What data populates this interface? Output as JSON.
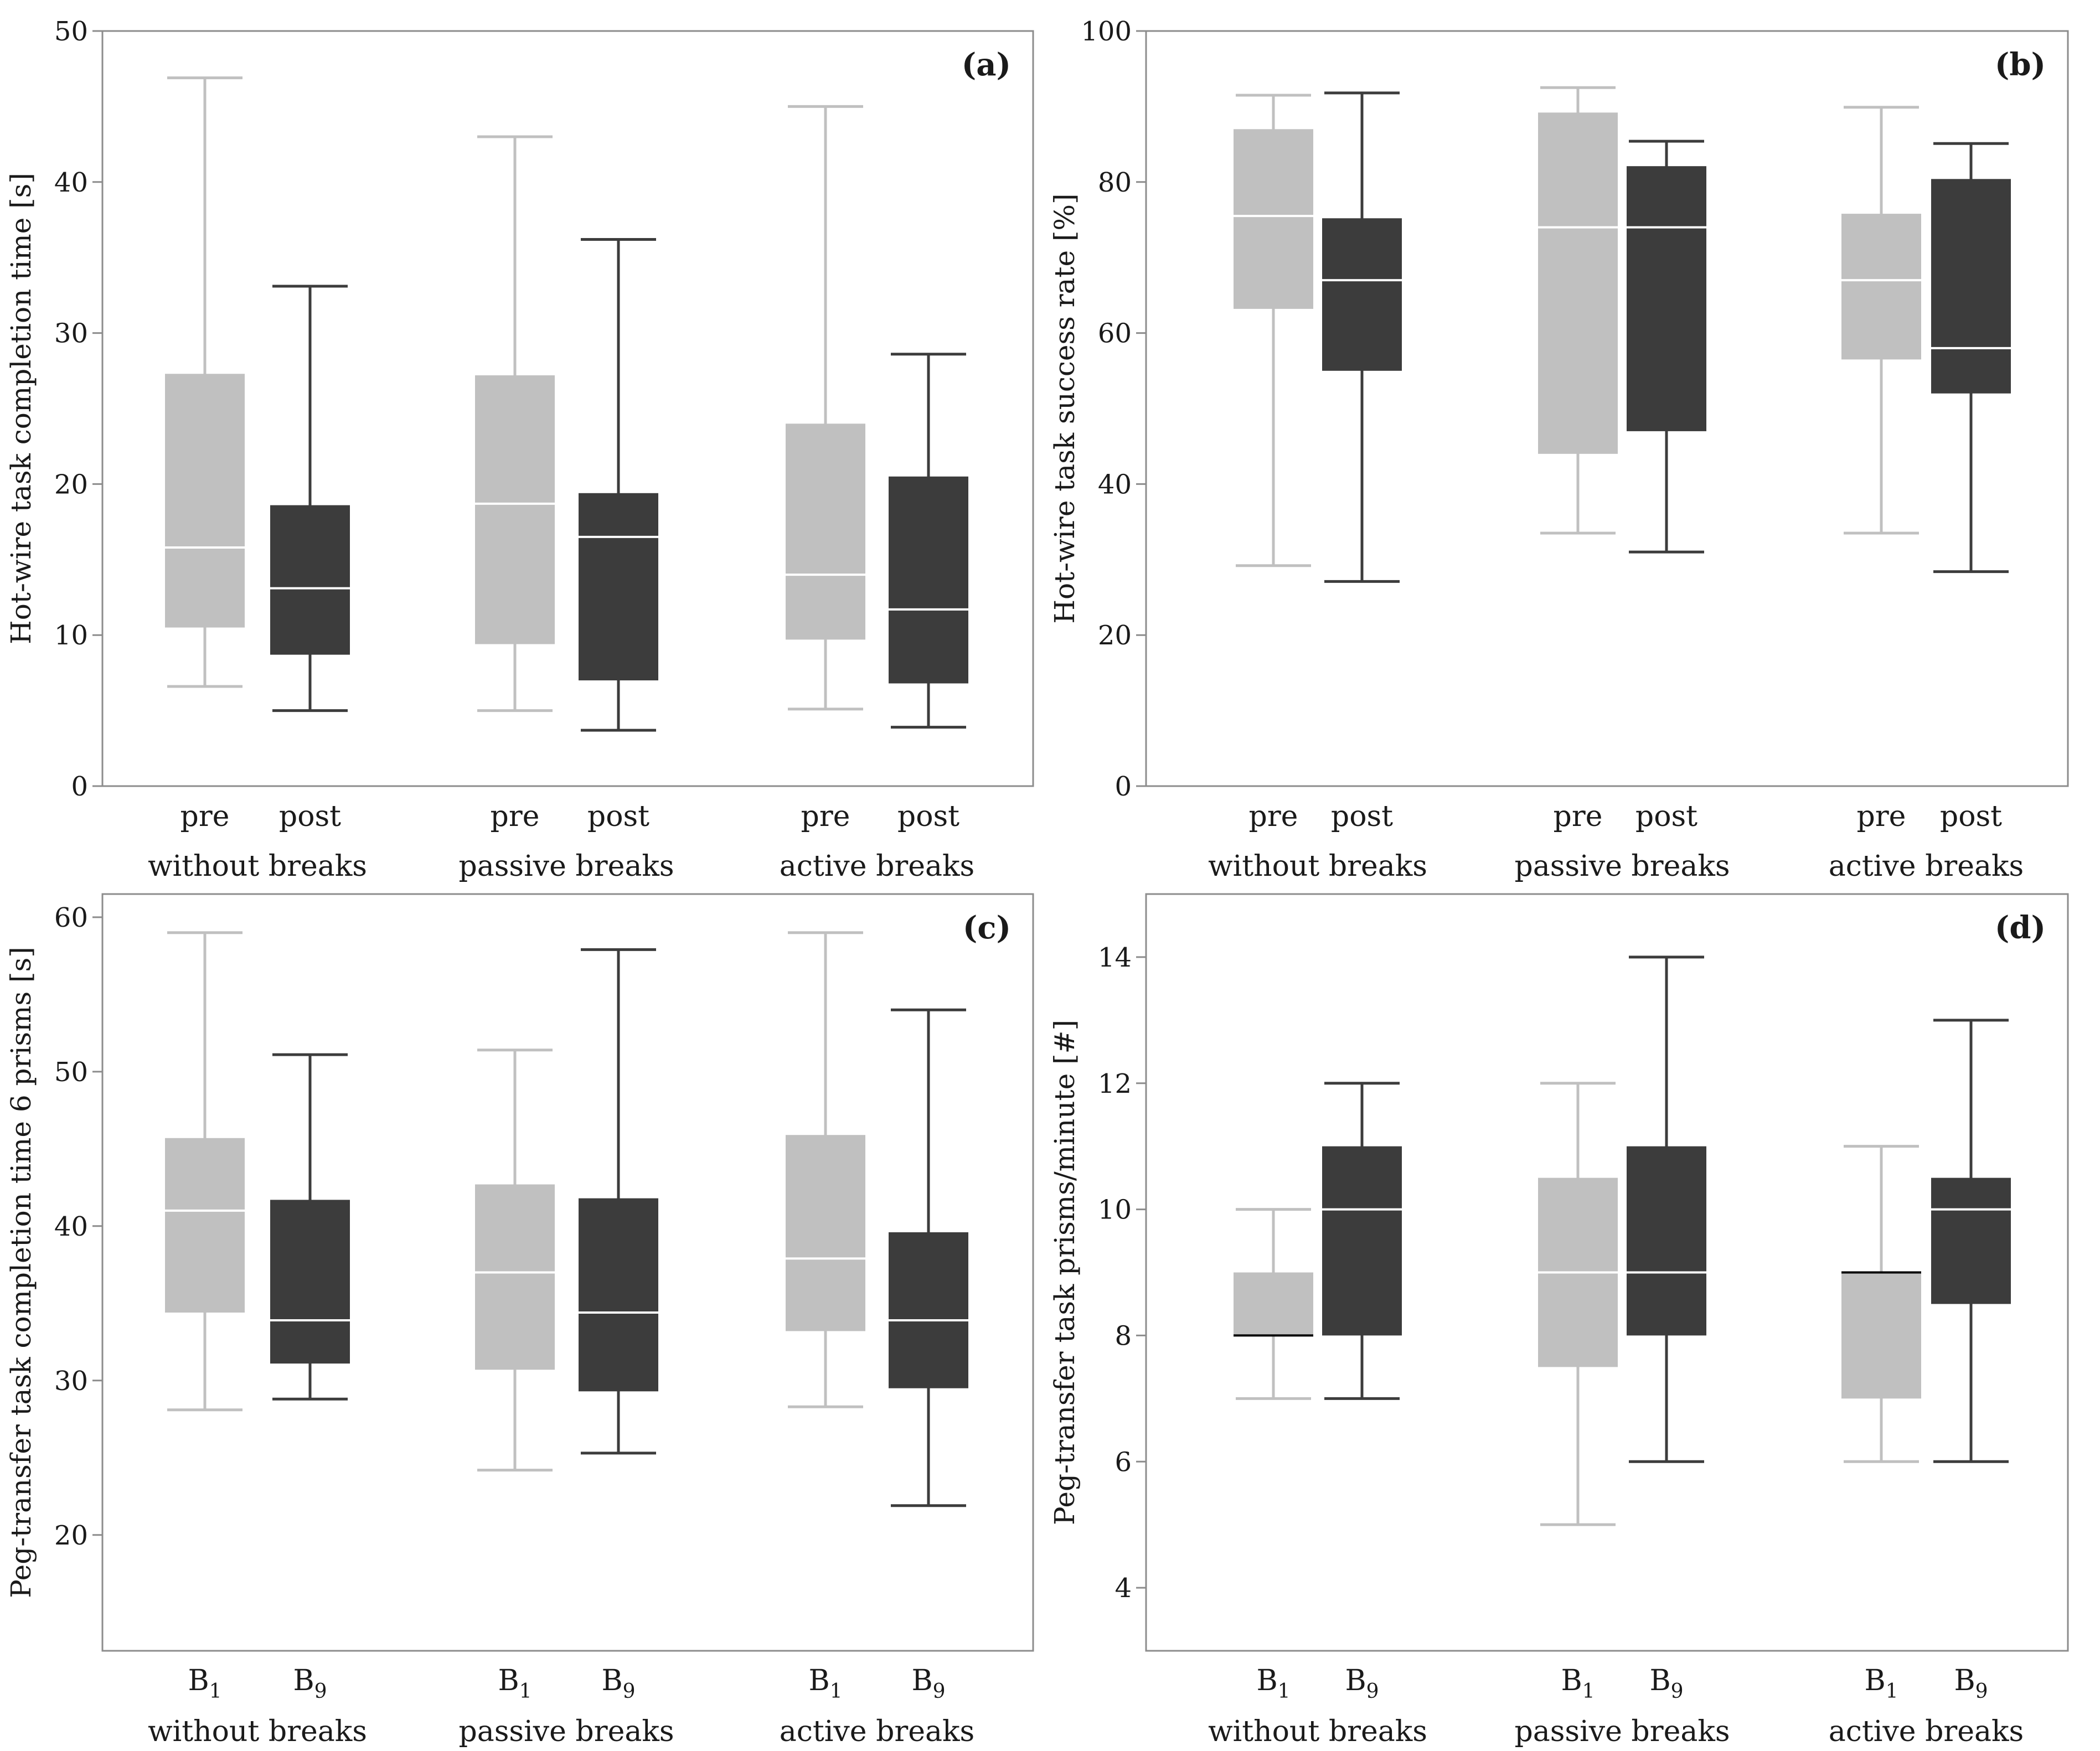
{
  "chart_data": [
    {
      "type": "box",
      "panel_label": "(a)",
      "ylabel": "Hot-wire task completion time [s]",
      "ylim": [
        0,
        50
      ],
      "yticks": [
        0,
        10,
        20,
        30,
        40,
        50
      ],
      "groups": [
        "without breaks",
        "passive breaks",
        "active breaks"
      ],
      "subcategories": [
        {
          "base": "pre",
          "sub": ""
        },
        {
          "base": "post",
          "sub": ""
        }
      ],
      "boxes": [
        [
          {
            "min": 6.6,
            "q1": 10.5,
            "median": 15.8,
            "q3": 27.3,
            "max": 46.9
          },
          {
            "min": 5.0,
            "q1": 8.7,
            "median": 13.1,
            "q3": 18.6,
            "max": 33.1
          }
        ],
        [
          {
            "min": 5.0,
            "q1": 9.4,
            "median": 18.7,
            "q3": 27.2,
            "max": 43.0
          },
          {
            "min": 3.7,
            "q1": 7.0,
            "median": 16.5,
            "q3": 19.4,
            "max": 36.2
          }
        ],
        [
          {
            "min": 5.1,
            "q1": 9.7,
            "median": 14.0,
            "q3": 24.0,
            "max": 45.0
          },
          {
            "min": 3.9,
            "q1": 6.8,
            "median": 11.7,
            "q3": 20.5,
            "max": 28.6
          }
        ]
      ]
    },
    {
      "type": "box",
      "panel_label": "(b)",
      "ylabel": "Hot-wire task success rate [%]",
      "ylim": [
        0,
        100
      ],
      "yticks": [
        0,
        20,
        40,
        60,
        80,
        100
      ],
      "groups": [
        "without breaks",
        "passive breaks",
        "active breaks"
      ],
      "subcategories": [
        {
          "base": "pre",
          "sub": ""
        },
        {
          "base": "post",
          "sub": ""
        }
      ],
      "boxes": [
        [
          {
            "min": 29.2,
            "q1": 63.2,
            "median": 75.5,
            "q3": 87.0,
            "max": 91.5
          },
          {
            "min": 27.1,
            "q1": 55.0,
            "median": 67.0,
            "q3": 75.2,
            "max": 91.8
          }
        ],
        [
          {
            "min": 33.5,
            "q1": 44.0,
            "median": 74.0,
            "q3": 89.2,
            "max": 92.5
          },
          {
            "min": 31.0,
            "q1": 47.0,
            "median": 74.0,
            "q3": 82.1,
            "max": 85.4
          }
        ],
        [
          {
            "min": 33.5,
            "q1": 56.5,
            "median": 67.0,
            "q3": 75.8,
            "max": 89.9
          },
          {
            "min": 28.4,
            "q1": 52.0,
            "median": 58.0,
            "q3": 80.4,
            "max": 85.1
          }
        ]
      ]
    },
    {
      "type": "box",
      "panel_label": "(c)",
      "ylabel": "Peg-transfer task completion time 6 prisms [s]",
      "ylim": [
        12.5,
        61.5
      ],
      "yticks": [
        20,
        30,
        40,
        50,
        60
      ],
      "groups": [
        "without breaks",
        "passive breaks",
        "active breaks"
      ],
      "subcategories": [
        {
          "base": "B",
          "sub": "1"
        },
        {
          "base": "B",
          "sub": "9"
        }
      ],
      "boxes": [
        [
          {
            "min": 28.1,
            "q1": 34.4,
            "median": 41.0,
            "q3": 45.7,
            "max": 59.0
          },
          {
            "min": 28.8,
            "q1": 31.1,
            "median": 33.9,
            "q3": 41.7,
            "max": 51.1
          }
        ],
        [
          {
            "min": 24.2,
            "q1": 30.7,
            "median": 37.0,
            "q3": 42.7,
            "max": 51.4
          },
          {
            "min": 25.3,
            "q1": 29.3,
            "median": 34.4,
            "q3": 41.8,
            "max": 57.9
          }
        ],
        [
          {
            "min": 28.3,
            "q1": 33.2,
            "median": 37.9,
            "q3": 45.9,
            "max": 59.0
          },
          {
            "min": 21.9,
            "q1": 29.5,
            "median": 33.9,
            "q3": 39.6,
            "max": 54.0
          }
        ]
      ]
    },
    {
      "type": "box",
      "panel_label": "(d)",
      "ylabel": "Peg-transfer task prisms/minute [#]",
      "ylim": [
        3.0,
        15.0
      ],
      "yticks": [
        4,
        6,
        8,
        10,
        12,
        14
      ],
      "groups": [
        "without breaks",
        "passive breaks",
        "active breaks"
      ],
      "subcategories": [
        {
          "base": "B",
          "sub": "1"
        },
        {
          "base": "B",
          "sub": "9"
        }
      ],
      "boxes": [
        [
          {
            "min": 7.0,
            "q1": 8.0,
            "median": 8.0,
            "q3": 9.0,
            "max": 10.0
          },
          {
            "min": 7.0,
            "q1": 8.0,
            "median": 10.0,
            "q3": 11.0,
            "max": 12.0
          }
        ],
        [
          {
            "min": 5.0,
            "q1": 7.5,
            "median": 9.0,
            "q3": 10.5,
            "max": 12.0
          },
          {
            "min": 6.0,
            "q1": 8.0,
            "median": 9.0,
            "q3": 11.0,
            "max": 14.0
          }
        ],
        [
          {
            "min": 6.0,
            "q1": 7.0,
            "median": 9.0,
            "q3": 9.0,
            "max": 11.0
          },
          {
            "min": 6.0,
            "q1": 8.5,
            "median": 10.0,
            "q3": 10.5,
            "max": 13.0
          }
        ]
      ]
    }
  ],
  "colors": {
    "pre_box": "#c0c0c0",
    "post_box": "#3c3c3c",
    "pre_median": "#ffffff",
    "post_median": "#ffffff",
    "frame": "#8c8c8c"
  }
}
